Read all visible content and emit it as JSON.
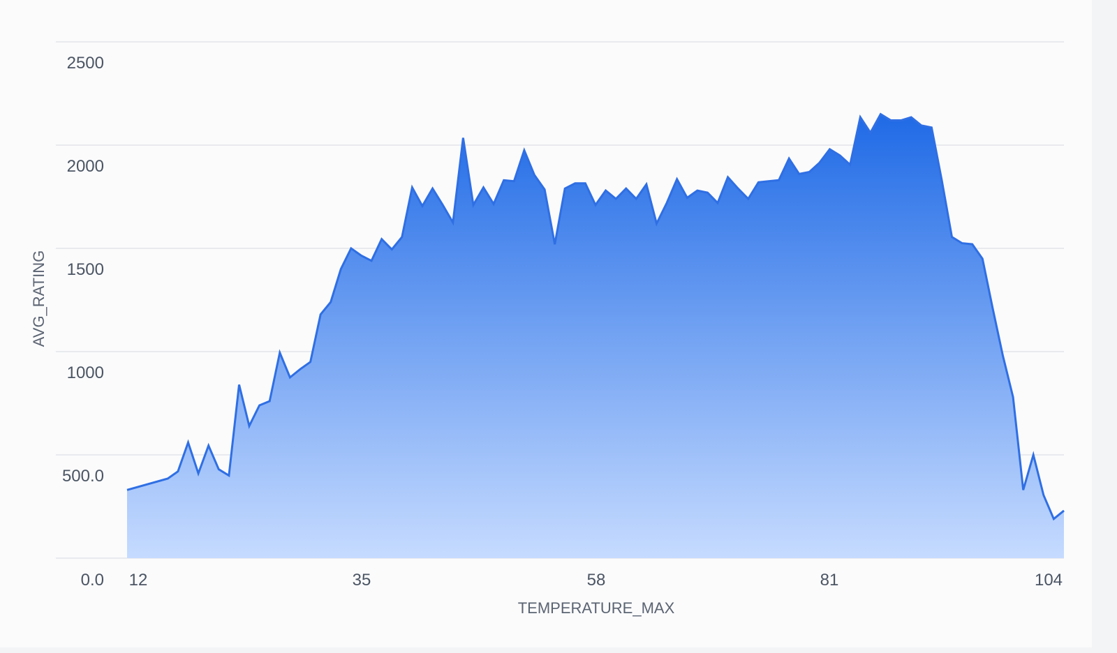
{
  "chart_data": {
    "type": "area",
    "xlabel": "TEMPERATURE_MAX",
    "ylabel": "AVG_RATING",
    "xlim": [
      12,
      104
    ],
    "ylim": [
      0,
      2500
    ],
    "x_ticks": [
      "12",
      "35",
      "58",
      "81",
      "104"
    ],
    "y_ticks": [
      "0.0",
      "500.0",
      "1000",
      "1500",
      "2000",
      "2500"
    ],
    "y_tick_values": [
      0,
      500,
      1000,
      1500,
      2000,
      2500
    ],
    "grid": true,
    "legend": "none",
    "color": "#2f6fe4",
    "x": [
      12,
      16,
      17,
      18,
      19,
      20,
      21,
      22,
      23,
      24,
      25,
      26,
      27,
      28,
      29,
      30,
      31,
      32,
      33,
      34,
      35,
      36,
      37,
      38,
      39,
      40,
      41,
      42,
      43,
      44,
      45,
      46,
      47,
      48,
      49,
      50,
      51,
      52,
      53,
      54,
      55,
      56,
      57,
      58,
      59,
      60,
      61,
      62,
      63,
      64,
      65,
      66,
      67,
      68,
      69,
      70,
      71,
      72,
      73,
      74,
      75,
      76,
      77,
      78,
      79,
      80,
      81,
      82,
      83,
      84,
      85,
      86,
      87,
      88,
      89,
      90,
      91,
      92,
      93,
      94,
      95,
      96,
      97,
      98,
      99,
      100,
      101,
      102,
      103,
      104
    ],
    "y": [
      330,
      385,
      420,
      560,
      410,
      545,
      430,
      400,
      840,
      640,
      740,
      760,
      995,
      875,
      915,
      950,
      1180,
      1240,
      1400,
      1500,
      1465,
      1440,
      1545,
      1495,
      1555,
      1795,
      1705,
      1790,
      1710,
      1625,
      2035,
      1710,
      1795,
      1715,
      1830,
      1825,
      1975,
      1855,
      1785,
      1520,
      1790,
      1815,
      1815,
      1710,
      1780,
      1740,
      1790,
      1740,
      1810,
      1620,
      1720,
      1835,
      1745,
      1780,
      1770,
      1720,
      1845,
      1790,
      1740,
      1820,
      1825,
      1830,
      1935,
      1860,
      1870,
      1915,
      1980,
      1950,
      1905,
      2135,
      2060,
      2150,
      2120,
      2120,
      2135,
      2095,
      2085,
      1830,
      1555,
      1525,
      1520,
      1450,
      1210,
      980,
      780,
      330,
      500,
      305,
      190,
      230
    ]
  }
}
